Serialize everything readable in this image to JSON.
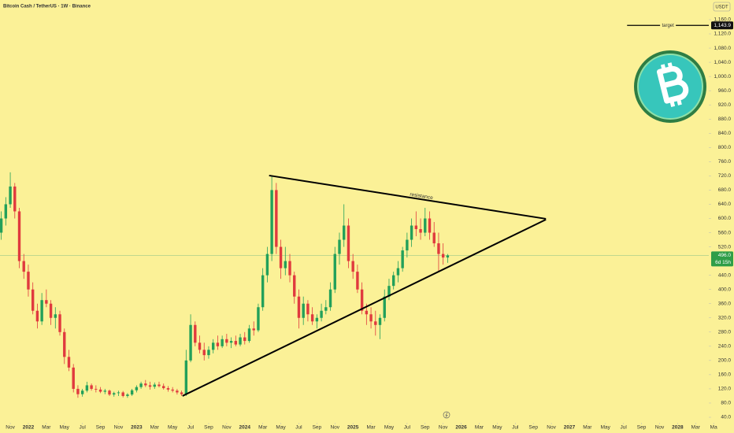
{
  "chart_data": {
    "type": "candlestick",
    "title": "Bitcoin Cash / TetherUS · 1W · Binance",
    "currency": "USDT",
    "up_color": "#22a05a",
    "down_color": "#e03a3e",
    "xlim": [
      -1.14,
      77.46
    ],
    "ylim": [
      24.5,
      1215.4
    ],
    "xticks": [
      {
        "value": 0,
        "label": "Nov"
      },
      {
        "value": 2,
        "label": "2022"
      },
      {
        "value": 4,
        "label": "Mar"
      },
      {
        "value": 6,
        "label": "May"
      },
      {
        "value": 8,
        "label": "Jul"
      },
      {
        "value": 10,
        "label": "Sep"
      },
      {
        "value": 12,
        "label": "Nov"
      },
      {
        "value": 14,
        "label": "2023"
      },
      {
        "value": 16,
        "label": "Mar"
      },
      {
        "value": 18,
        "label": "May"
      },
      {
        "value": 20,
        "label": "Jul"
      },
      {
        "value": 22,
        "label": "Sep"
      },
      {
        "value": 24,
        "label": "Nov"
      },
      {
        "value": 26,
        "label": "2024"
      },
      {
        "value": 28,
        "label": "Mar"
      },
      {
        "value": 30,
        "label": "May"
      },
      {
        "value": 32,
        "label": "Jul"
      },
      {
        "value": 34,
        "label": "Sep"
      },
      {
        "value": 36,
        "label": "Nov"
      },
      {
        "value": 38,
        "label": "2025"
      },
      {
        "value": 40,
        "label": "Mar"
      },
      {
        "value": 42,
        "label": "May"
      },
      {
        "value": 44,
        "label": "Jul"
      },
      {
        "value": 46,
        "label": "Sep"
      },
      {
        "value": 48,
        "label": "Nov"
      },
      {
        "value": 50,
        "label": "2026"
      },
      {
        "value": 52,
        "label": "Mar"
      },
      {
        "value": 54,
        "label": "May"
      },
      {
        "value": 56,
        "label": "Jul"
      },
      {
        "value": 58,
        "label": "Sep"
      },
      {
        "value": 60,
        "label": "Nov"
      },
      {
        "value": 62,
        "label": "2027"
      },
      {
        "value": 64,
        "label": "Mar"
      },
      {
        "value": 66,
        "label": "May"
      },
      {
        "value": 68,
        "label": "Jul"
      },
      {
        "value": 70,
        "label": "Sep"
      },
      {
        "value": 72,
        "label": "Nov"
      },
      {
        "value": 74,
        "label": "2028"
      },
      {
        "value": 76,
        "label": "Mar"
      },
      {
        "value": 78,
        "label": "Ma"
      }
    ],
    "yticks": [
      {
        "value": 40,
        "label": "40.0"
      },
      {
        "value": 80,
        "label": "80.0"
      },
      {
        "value": 120,
        "label": "120.0"
      },
      {
        "value": 160,
        "label": "160.0"
      },
      {
        "value": 200,
        "label": "200.0"
      },
      {
        "value": 240,
        "label": "240.0"
      },
      {
        "value": 280,
        "label": "280.0"
      },
      {
        "value": 320,
        "label": "320.0"
      },
      {
        "value": 360,
        "label": "360.0"
      },
      {
        "value": 400,
        "label": "400.0"
      },
      {
        "value": 440,
        "label": "440.0"
      },
      {
        "value": 520,
        "label": "520.0"
      },
      {
        "value": 560,
        "label": "560.0"
      },
      {
        "value": 600,
        "label": "600.0"
      },
      {
        "value": 640,
        "label": "640.0"
      },
      {
        "value": 680,
        "label": "680.0"
      },
      {
        "value": 720,
        "label": "720.0"
      },
      {
        "value": 760,
        "label": "760.0"
      },
      {
        "value": 800,
        "label": "800.0"
      },
      {
        "value": 840,
        "label": "840.0"
      },
      {
        "value": 880,
        "label": "880.0"
      },
      {
        "value": 920,
        "label": "920.0"
      },
      {
        "value": 960,
        "label": "960.0"
      },
      {
        "value": 1000,
        "label": "1,000.0"
      },
      {
        "value": 1040,
        "label": "1,040.0"
      },
      {
        "value": 1080,
        "label": "1,080.0"
      },
      {
        "value": 1120,
        "label": "1,120.0"
      },
      {
        "value": 1160,
        "label": "1,160.0"
      }
    ],
    "x": [
      -1,
      -0.5,
      0,
      0.5,
      1,
      1.5,
      2,
      2.5,
      3,
      3.5,
      4,
      4.5,
      5,
      5.5,
      6,
      6.5,
      7,
      7.5,
      8,
      8.5,
      9,
      9.5,
      10,
      10.5,
      11,
      11.5,
      12,
      12.5,
      13,
      13.5,
      14,
      14.5,
      15,
      15.5,
      16,
      16.5,
      17,
      17.5,
      18,
      18.5,
      19,
      19.5,
      20,
      20.5,
      21,
      21.5,
      22,
      22.5,
      23,
      23.5,
      24,
      24.5,
      25,
      25.5,
      26,
      26.5,
      27,
      27.5,
      28,
      28.5,
      29,
      29.5,
      30,
      30.5,
      31,
      31.5,
      32,
      32.5,
      33,
      33.5,
      34,
      34.5,
      35,
      35.5,
      36,
      36.5,
      37,
      37.5,
      38,
      38.5,
      39,
      39.5,
      40,
      40.5,
      41,
      41.5,
      42,
      42.5,
      43,
      43.5,
      44,
      44.5,
      45,
      45.5,
      46,
      46.5,
      47,
      47.5,
      48,
      48.5
    ],
    "candles": [
      [
        560,
        620,
        540,
        600
      ],
      [
        600,
        660,
        580,
        640
      ],
      [
        640,
        730,
        630,
        690
      ],
      [
        690,
        700,
        600,
        620
      ],
      [
        620,
        630,
        460,
        480
      ],
      [
        480,
        500,
        430,
        450
      ],
      [
        450,
        470,
        380,
        400
      ],
      [
        400,
        420,
        330,
        340
      ],
      [
        340,
        360,
        290,
        310
      ],
      [
        310,
        390,
        300,
        370
      ],
      [
        370,
        400,
        350,
        360
      ],
      [
        360,
        370,
        300,
        320
      ],
      [
        320,
        350,
        290,
        330
      ],
      [
        330,
        340,
        270,
        280
      ],
      [
        280,
        290,
        190,
        210
      ],
      [
        210,
        230,
        170,
        180
      ],
      [
        180,
        190,
        110,
        120
      ],
      [
        120,
        130,
        95,
        105
      ],
      [
        105,
        120,
        98,
        115
      ],
      [
        115,
        140,
        110,
        130
      ],
      [
        130,
        135,
        115,
        120
      ],
      [
        120,
        130,
        110,
        118
      ],
      [
        118,
        125,
        108,
        112
      ],
      [
        112,
        120,
        105,
        115
      ],
      [
        115,
        118,
        100,
        104
      ],
      [
        104,
        112,
        98,
        108
      ],
      [
        108,
        115,
        100,
        110
      ],
      [
        110,
        114,
        96,
        100
      ],
      [
        100,
        108,
        95,
        104
      ],
      [
        104,
        120,
        100,
        116
      ],
      [
        116,
        130,
        110,
        125
      ],
      [
        125,
        140,
        120,
        135
      ],
      [
        135,
        145,
        125,
        130
      ],
      [
        130,
        140,
        118,
        126
      ],
      [
        126,
        138,
        120,
        132
      ],
      [
        132,
        140,
        124,
        128
      ],
      [
        128,
        135,
        118,
        122
      ],
      [
        122,
        128,
        112,
        118
      ],
      [
        118,
        125,
        110,
        115
      ],
      [
        115,
        120,
        104,
        110
      ],
      [
        110,
        115,
        100,
        105
      ],
      [
        105,
        230,
        100,
        200
      ],
      [
        200,
        330,
        195,
        300
      ],
      [
        300,
        310,
        240,
        250
      ],
      [
        250,
        270,
        220,
        230
      ],
      [
        230,
        250,
        200,
        215
      ],
      [
        215,
        240,
        205,
        230
      ],
      [
        230,
        260,
        220,
        250
      ],
      [
        250,
        270,
        230,
        240
      ],
      [
        240,
        270,
        235,
        260
      ],
      [
        260,
        275,
        240,
        250
      ],
      [
        250,
        265,
        235,
        255
      ],
      [
        255,
        270,
        240,
        245
      ],
      [
        245,
        275,
        240,
        265
      ],
      [
        265,
        280,
        245,
        255
      ],
      [
        255,
        300,
        250,
        290
      ],
      [
        290,
        310,
        270,
        285
      ],
      [
        285,
        360,
        280,
        350
      ],
      [
        350,
        460,
        340,
        440
      ],
      [
        440,
        520,
        420,
        500
      ],
      [
        500,
        720,
        480,
        680
      ],
      [
        680,
        700,
        500,
        520
      ],
      [
        520,
        540,
        430,
        460
      ],
      [
        460,
        520,
        440,
        480
      ],
      [
        480,
        500,
        420,
        440
      ],
      [
        440,
        450,
        360,
        380
      ],
      [
        380,
        400,
        290,
        320
      ],
      [
        320,
        380,
        300,
        360
      ],
      [
        360,
        370,
        310,
        330
      ],
      [
        330,
        350,
        300,
        310
      ],
      [
        310,
        330,
        290,
        320
      ],
      [
        320,
        360,
        310,
        340
      ],
      [
        340,
        370,
        330,
        350
      ],
      [
        350,
        420,
        340,
        400
      ],
      [
        400,
        520,
        390,
        500
      ],
      [
        500,
        560,
        470,
        540
      ],
      [
        540,
        640,
        520,
        580
      ],
      [
        580,
        600,
        460,
        480
      ],
      [
        480,
        500,
        430,
        450
      ],
      [
        450,
        470,
        390,
        400
      ],
      [
        400,
        420,
        330,
        340
      ],
      [
        340,
        360,
        300,
        330
      ],
      [
        330,
        350,
        290,
        310
      ],
      [
        310,
        340,
        270,
        300
      ],
      [
        300,
        330,
        260,
        320
      ],
      [
        320,
        400,
        310,
        380
      ],
      [
        380,
        430,
        370,
        410
      ],
      [
        410,
        450,
        400,
        440
      ],
      [
        440,
        480,
        420,
        460
      ],
      [
        460,
        520,
        450,
        510
      ],
      [
        510,
        560,
        490,
        540
      ],
      [
        540,
        600,
        520,
        580
      ],
      [
        580,
        620,
        550,
        570
      ],
      [
        570,
        600,
        540,
        560
      ],
      [
        560,
        630,
        550,
        600
      ],
      [
        600,
        620,
        540,
        560
      ],
      [
        560,
        590,
        520,
        530
      ],
      [
        530,
        560,
        450,
        500
      ],
      [
        500,
        530,
        470,
        490
      ],
      [
        490,
        500,
        475,
        496
      ]
    ],
    "last_price": {
      "value": 496,
      "label": "496.0"
    },
    "countdown": "6d 15h",
    "trendlines": [
      {
        "label": "resistance",
        "x": [
          28.7,
          59.4
        ],
        "y": [
          721,
          599
        ]
      },
      {
        "x": [
          19.1,
          59.4
        ],
        "y": [
          100,
          597
        ]
      }
    ],
    "target": {
      "label": "target",
      "x": [
        68.4,
        77.46
      ],
      "value": 1143.9,
      "value_label": "1,143.9"
    }
  }
}
